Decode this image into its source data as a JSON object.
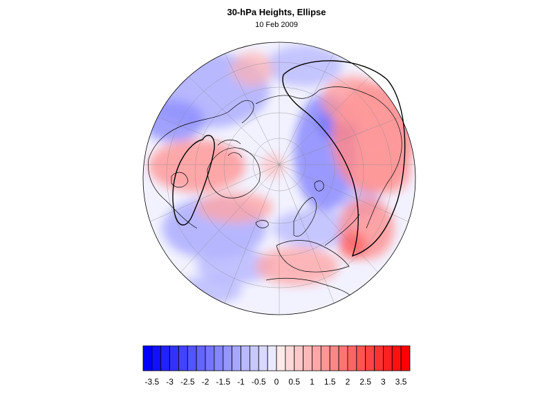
{
  "title": "30-hPa Heights, Ellipse",
  "subtitle": "10 Feb 2009",
  "colorbar": {
    "labels": [
      "-3.5",
      "-3",
      "-2.5",
      "-2",
      "-1.5",
      "-1",
      "-0.5",
      "0",
      "0.5",
      "1",
      "1.5",
      "2",
      "2.5",
      "3",
      "3.5"
    ],
    "min": -3.75,
    "max": 3.75,
    "step": 0.25,
    "negative_color": "#0000ff",
    "positive_color": "#ff0000",
    "neutral_color": "#ffffff"
  }
}
